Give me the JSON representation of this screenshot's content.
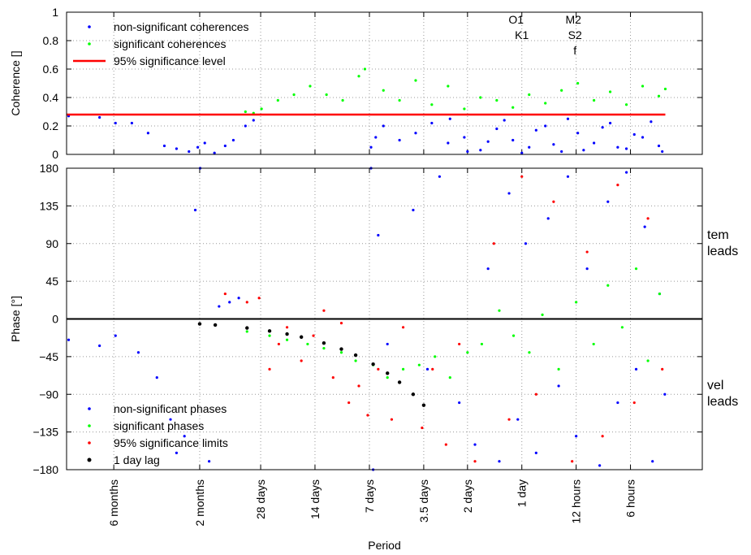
{
  "chart_data": [
    {
      "type": "scatter",
      "ylabel": "Coherence []",
      "xscale": "log",
      "xlim": [
        0.003,
        10
      ],
      "ylim": [
        0,
        1
      ],
      "yticks": [
        0,
        0.2,
        0.4,
        0.6,
        0.8,
        1
      ],
      "grid": true,
      "legend": "upper left",
      "annotations": [
        {
          "text": "O1",
          "x": 0.93
        },
        {
          "text": "K1",
          "x": 1.0
        },
        {
          "text": "M2",
          "x": 1.93
        },
        {
          "text": "S2",
          "x": 1.97
        },
        {
          "text": "f",
          "x": 1.97
        }
      ],
      "series": [
        {
          "name": "non-significant coherences",
          "color": "#0000ff",
          "mode": "markers",
          "x": [
            0.00308,
            0.00457,
            0.0056,
            0.0069,
            0.00849,
            0.01045,
            0.0122,
            0.0143,
            0.016,
            0.0175,
            0.0198,
            0.0227,
            0.0252,
            0.0294,
            0.0326,
            0.146,
            0.171,
            0.21,
            0.258,
            0.317,
            0.39,
            0.48,
            0.59,
            0.726,
            0.892,
            1.098,
            1.35,
            1.66,
            2.042,
            2.511,
            3.088,
            3.798,
            4.671,
            5.745,
            0.155,
            0.4,
            0.5,
            0.65,
            0.8,
            1.0,
            1.2,
            1.5,
            1.8,
            2.2,
            2.8,
            3.4,
            4.2,
            5.2,
            6.0
          ],
          "values": [
            0.27,
            0.26,
            0.22,
            0.22,
            0.15,
            0.06,
            0.04,
            0.02,
            0.05,
            0.08,
            0.01,
            0.06,
            0.1,
            0.2,
            0.24,
            0.05,
            0.2,
            0.1,
            0.15,
            0.22,
            0.08,
            0.12,
            0.03,
            0.18,
            0.1,
            0.05,
            0.2,
            0.02,
            0.15,
            0.08,
            0.22,
            0.04,
            0.12,
            0.06,
            0.12,
            0.25,
            0.02,
            0.09,
            0.24,
            0.01,
            0.17,
            0.07,
            0.25,
            0.03,
            0.19,
            0.05,
            0.14,
            0.23,
            0.02
          ]
        },
        {
          "name": "significant coherences",
          "color": "#00ff00",
          "mode": "markers",
          "x": [
            0.0294,
            0.0326,
            0.0361,
            0.0445,
            0.0546,
            0.0671,
            0.0827,
            0.1017,
            0.125,
            0.135,
            0.171,
            0.21,
            0.258,
            0.317,
            0.39,
            0.48,
            0.59,
            0.726,
            0.892,
            1.098,
            1.35,
            1.66,
            2.042,
            2.511,
            3.088,
            3.798,
            4.671,
            5.745,
            6.24
          ],
          "values": [
            0.3,
            0.29,
            0.32,
            0.38,
            0.42,
            0.48,
            0.42,
            0.38,
            0.55,
            0.6,
            0.45,
            0.38,
            0.52,
            0.35,
            0.48,
            0.32,
            0.4,
            0.38,
            0.33,
            0.42,
            0.36,
            0.45,
            0.5,
            0.38,
            0.44,
            0.35,
            0.48,
            0.41,
            0.46
          ]
        },
        {
          "name": "95% significance level",
          "color": "#ff0000",
          "mode": "line",
          "x": [
            0.003,
            6.24
          ],
          "values": [
            0.28,
            0.28
          ]
        }
      ]
    },
    {
      "type": "scatter",
      "ylabel": "Phase [°]",
      "xlabel": "Period",
      "xscale": "log",
      "xlim": [
        0.003,
        10
      ],
      "ylim": [
        -180,
        180
      ],
      "yticks": [
        {
          "value": -180,
          "label": "−180"
        },
        {
          "value": -135,
          "label": "−135"
        },
        {
          "value": -90,
          "label": "−90"
        },
        {
          "value": -45,
          "label": "−45"
        },
        0,
        45,
        90,
        135,
        180
      ],
      "xticks": [
        {
          "value": 0.00548,
          "label": "6 months"
        },
        {
          "value": 0.0164,
          "label": "2 months"
        },
        {
          "value": 0.0357,
          "label": "28 days"
        },
        {
          "value": 0.0714,
          "label": "14 days"
        },
        {
          "value": 0.143,
          "label": "7 days"
        },
        {
          "value": 0.286,
          "label": "3.5 days"
        },
        {
          "value": 0.5,
          "label": "2 days"
        },
        {
          "value": 1,
          "label": "1 day"
        },
        {
          "value": 2,
          "label": "12 hours"
        },
        {
          "value": 4,
          "label": "6 hours"
        }
      ],
      "grid": true,
      "zero_line": true,
      "legend": "lower left",
      "side_notes": [
        {
          "text": "tem leads",
          "y": 90
        },
        {
          "text": "vel leads",
          "y": -90
        }
      ],
      "series": [
        {
          "name": "non-significant phases",
          "color": "#0000ff",
          "mode": "markers",
          "x": [
            0.00308,
            0.00457,
            0.0056,
            0.0075,
            0.0095,
            0.0113,
            0.0122,
            0.0135,
            0.0155,
            0.0165,
            0.0185,
            0.021,
            0.024,
            0.027,
            0.146,
            0.15,
            0.16,
            0.18,
            0.25,
            0.3,
            0.35,
            0.45,
            0.55,
            0.65,
            0.75,
            0.85,
            0.95,
            1.05,
            1.2,
            1.4,
            1.6,
            1.8,
            2.0,
            2.3,
            2.7,
            3.0,
            3.4,
            3.8,
            4.3,
            4.8,
            5.3,
            5.8,
            6.2
          ],
          "values": [
            -25,
            -32,
            -20,
            -40,
            -70,
            -120,
            -160,
            -140,
            130,
            180,
            -170,
            15,
            20,
            25,
            180,
            -180,
            100,
            -30,
            130,
            -60,
            170,
            -100,
            -150,
            60,
            -170,
            150,
            -120,
            90,
            -160,
            120,
            -80,
            170,
            -140,
            60,
            -175,
            140,
            -100,
            175,
            -60,
            110,
            -170,
            30,
            -90
          ]
        },
        {
          "name": "significant phases",
          "color": "#00ff00",
          "mode": "markers",
          "x": [
            0.03,
            0.04,
            0.05,
            0.065,
            0.08,
            0.1,
            0.12,
            0.15,
            0.18,
            0.22,
            0.27,
            0.33,
            0.4,
            0.5,
            0.6,
            0.75,
            0.9,
            1.1,
            1.3,
            1.6,
            2.0,
            2.5,
            3.0,
            3.6,
            4.3,
            5.0,
            5.8
          ],
          "values": [
            -15,
            -20,
            -25,
            -30,
            -35,
            -40,
            -50,
            -55,
            -70,
            -60,
            -55,
            -45,
            -70,
            -40,
            -30,
            10,
            -20,
            -40,
            5,
            -60,
            20,
            -30,
            40,
            -10,
            60,
            -50,
            30
          ]
        },
        {
          "name": "95% significance limits",
          "color": "#ff0000",
          "mode": "markers",
          "x": [
            0.0227,
            0.03,
            0.035,
            0.04,
            0.045,
            0.05,
            0.06,
            0.07,
            0.08,
            0.09,
            0.1,
            0.11,
            0.125,
            0.14,
            0.16,
            0.19,
            0.22,
            0.25,
            0.28,
            0.32,
            0.38,
            0.45,
            0.55,
            0.7,
            0.85,
            1.0,
            1.2,
            1.5,
            1.9,
            2.3,
            2.8,
            3.4,
            4.2,
            5.0,
            6.0
          ],
          "values": [
            30,
            20,
            25,
            -60,
            -30,
            -10,
            -50,
            -20,
            10,
            -70,
            -5,
            -100,
            -80,
            -115,
            -60,
            -120,
            -10,
            -90,
            -130,
            -60,
            -150,
            -30,
            -170,
            90,
            -120,
            170,
            -90,
            140,
            -170,
            80,
            -140,
            160,
            -100,
            120,
            -60
          ]
        },
        {
          "name": "1 day lag",
          "color": "#000000",
          "mode": "markers",
          "x": [
            0.0164,
            0.02,
            0.03,
            0.04,
            0.05,
            0.06,
            0.08,
            0.1,
            0.12,
            0.15,
            0.18,
            0.21,
            0.25,
            0.286
          ],
          "values": [
            -5.9,
            -7.2,
            -10.8,
            -14.4,
            -18,
            -21.6,
            -28.8,
            -36,
            -43.2,
            -54,
            -64.8,
            -75.6,
            -90,
            -103
          ]
        }
      ]
    }
  ]
}
